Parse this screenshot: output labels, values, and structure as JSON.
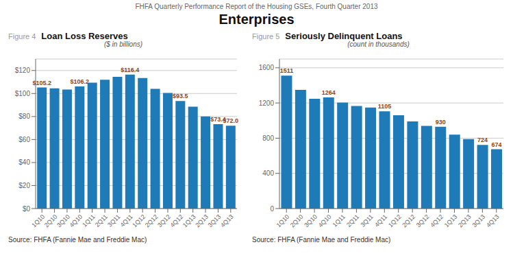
{
  "title": "Enterprises",
  "subtitle": "FHFA Quarterly Performance Report of the Housing GSEs, Fourth Quarter 2013",
  "chart_data": [
    {
      "type": "bar",
      "label": "Figure 4",
      "title": "Loan Loss Reserves",
      "subtitle": "($ in billions)",
      "source": "Source: FHFA (Fannie Mae and Freddie Mac)",
      "categories": [
        "1Q10",
        "2Q10",
        "3Q10",
        "4Q10",
        "1Q11",
        "2Q11",
        "3Q11",
        "4Q11",
        "1Q12",
        "2Q12",
        "3Q12",
        "4Q12",
        "1Q13",
        "2Q13",
        "3Q13",
        "4Q13"
      ],
      "values": [
        105.2,
        104.5,
        103.5,
        106.2,
        109.5,
        112.0,
        114.5,
        116.4,
        113.5,
        104.0,
        100.5,
        93.5,
        88.5,
        80.0,
        73.4,
        72.0
      ],
      "value_labels": [
        "$105.2",
        null,
        null,
        "$106.2",
        null,
        null,
        null,
        "$116.4",
        null,
        null,
        null,
        "$93.5",
        null,
        null,
        "$73.4",
        "$72.0"
      ],
      "data_labels": true,
      "color": "#1F7AB8",
      "ylim": [
        0,
        130
      ],
      "yticks": [
        {
          "value": 0,
          "label": "$0"
        },
        {
          "value": 20,
          "label": "$20"
        },
        {
          "value": 40,
          "label": "$40"
        },
        {
          "value": 60,
          "label": "$60"
        },
        {
          "value": 80,
          "label": "$80"
        },
        {
          "value": 100,
          "label": "$100"
        },
        {
          "value": 120,
          "label": "$120"
        }
      ],
      "grid": true
    },
    {
      "type": "bar",
      "label": "Figure 5",
      "title": "Seriously Delinquent Loans",
      "subtitle": "(count in thousands)",
      "source": "Source: FHFA (Fannie Mae and Freddie Mac)",
      "categories": [
        "1Q10",
        "2Q10",
        "3Q10",
        "4Q10",
        "1Q11",
        "2Q11",
        "3Q11",
        "4Q11",
        "1Q12",
        "2Q12",
        "3Q12",
        "4Q12",
        "1Q13",
        "2Q13",
        "3Q13",
        "4Q13"
      ],
      "values": [
        1511,
        1350,
        1248,
        1264,
        1204,
        1165,
        1148,
        1105,
        1060,
        990,
        940,
        930,
        840,
        790,
        724,
        674
      ],
      "value_labels": [
        "1511",
        null,
        null,
        "1264",
        null,
        null,
        null,
        "1105",
        null,
        null,
        null,
        "930",
        null,
        null,
        "724",
        "674"
      ],
      "data_labels": true,
      "color": "#1F7AB8",
      "ylim": [
        0,
        1700
      ],
      "yticks": [
        0,
        400,
        800,
        1200,
        1600
      ],
      "grid": true
    }
  ]
}
